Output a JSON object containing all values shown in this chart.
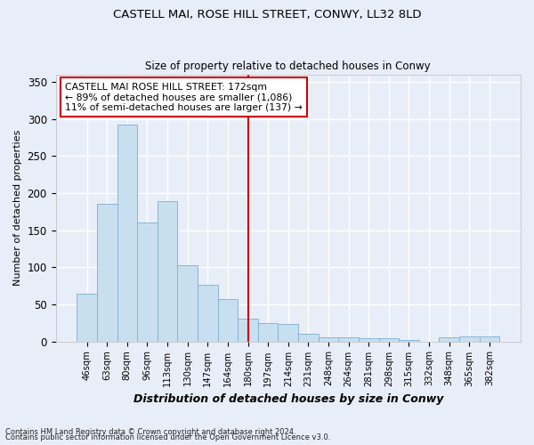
{
  "title1": "CASTELL MAI, ROSE HILL STREET, CONWY, LL32 8LD",
  "title2": "Size of property relative to detached houses in Conwy",
  "xlabel": "Distribution of detached houses by size in Conwy",
  "ylabel": "Number of detached properties",
  "categories": [
    "46sqm",
    "63sqm",
    "80sqm",
    "96sqm",
    "113sqm",
    "130sqm",
    "147sqm",
    "164sqm",
    "180sqm",
    "197sqm",
    "214sqm",
    "231sqm",
    "248sqm",
    "264sqm",
    "281sqm",
    "298sqm",
    "315sqm",
    "332sqm",
    "348sqm",
    "365sqm",
    "382sqm"
  ],
  "values": [
    64,
    185,
    292,
    160,
    189,
    103,
    76,
    57,
    31,
    25,
    23,
    10,
    6,
    5,
    4,
    4,
    2,
    0,
    6,
    7,
    7
  ],
  "bar_color": "#c8dff0",
  "bar_edge_color": "#8ab4d4",
  "bg_color": "#e8eef8",
  "grid_color": "#ffffff",
  "vline_color": "#cc0000",
  "vline_pos": 8.5,
  "annotation_text": "CASTELL MAI ROSE HILL STREET: 172sqm\n← 89% of detached houses are smaller (1,086)\n11% of semi-detached houses are larger (137) →",
  "annotation_box_edgecolor": "#cc0000",
  "footer1": "Contains HM Land Registry data © Crown copyright and database right 2024.",
  "footer2": "Contains public sector information licensed under the Open Government Licence v3.0.",
  "ylim": [
    0,
    360
  ],
  "yticks": [
    0,
    50,
    100,
    150,
    200,
    250,
    300,
    350
  ]
}
